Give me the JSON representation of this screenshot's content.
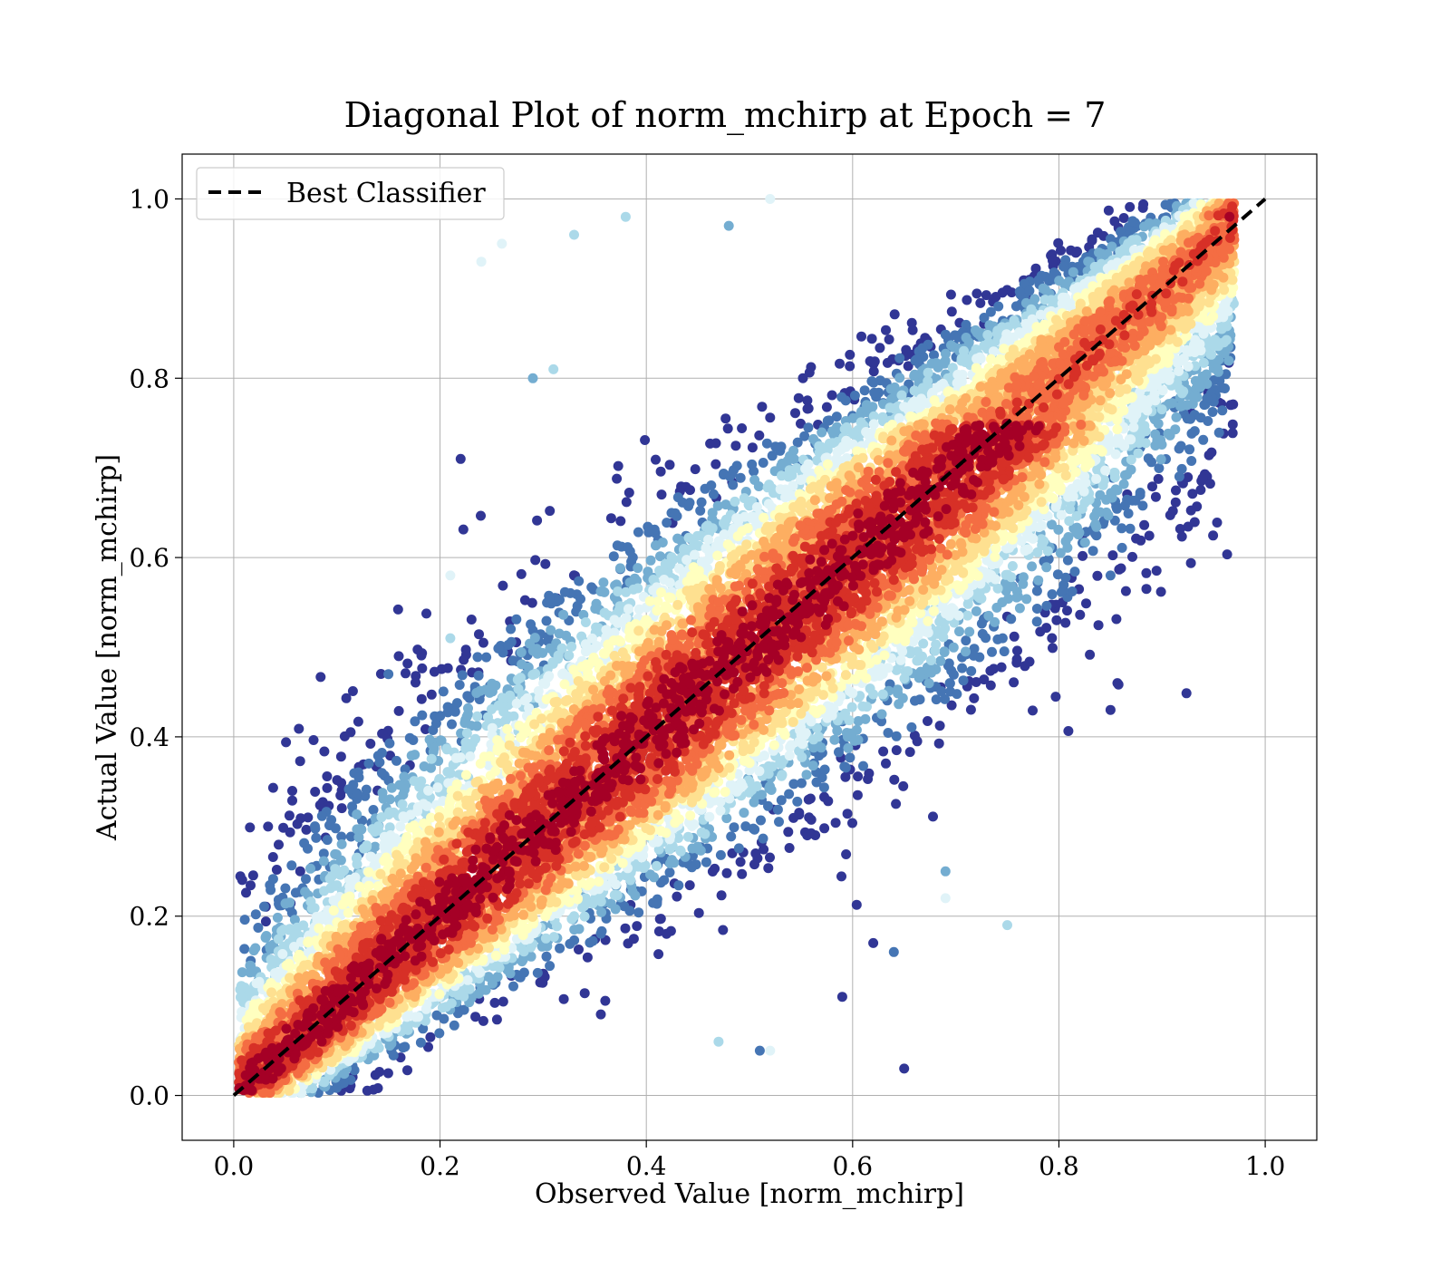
{
  "chart_data": {
    "type": "scatter",
    "title": "Diagonal Plot of norm_mchirp at Epoch = 7",
    "xlabel": "Observed Value [norm_mchirp]",
    "ylabel": "Actual Value [norm_mchirp]",
    "xlim": [
      -0.05,
      1.05
    ],
    "ylim": [
      -0.05,
      1.05
    ],
    "xticks": [
      0.0,
      0.2,
      0.4,
      0.6,
      0.8,
      1.0
    ],
    "yticks": [
      0.0,
      0.2,
      0.4,
      0.6,
      0.8,
      1.0
    ],
    "xtick_labels": [
      "0.0",
      "0.2",
      "0.4",
      "0.6",
      "0.8",
      "1.0"
    ],
    "ytick_labels": [
      "0.0",
      "0.2",
      "0.4",
      "0.6",
      "0.8",
      "1.0"
    ],
    "grid": true,
    "legend": {
      "placement": "upper-left",
      "entries": [
        "Best Classifier"
      ]
    },
    "reference_line": {
      "name": "Best Classifier",
      "style": "dashed",
      "color": "#000000",
      "x": [
        0.0,
        1.0
      ],
      "y": [
        0.0,
        1.0
      ]
    },
    "colormap": [
      "#313695",
      "#4575b4",
      "#74add1",
      "#abd9e9",
      "#e0f3f8",
      "#ffffbf",
      "#fee090",
      "#fdae61",
      "#f46d43",
      "#d73027",
      "#a50026"
    ],
    "points_description_count": 15000,
    "outliers": [
      {
        "x": 0.26,
        "y": 0.95
      },
      {
        "x": 0.24,
        "y": 0.93
      },
      {
        "x": 0.15,
        "y": 0.47
      },
      {
        "x": 0.16,
        "y": 0.49
      },
      {
        "x": 0.85,
        "y": 0.43
      },
      {
        "x": 0.75,
        "y": 0.19
      },
      {
        "x": 0.65,
        "y": 0.03
      },
      {
        "x": 0.59,
        "y": 0.11
      },
      {
        "x": 0.51,
        "y": 0.05
      },
      {
        "x": 0.52,
        "y": 0.05
      },
      {
        "x": 0.47,
        "y": 0.06
      },
      {
        "x": 0.62,
        "y": 0.17
      },
      {
        "x": 0.64,
        "y": 0.16
      },
      {
        "x": 0.69,
        "y": 0.22
      },
      {
        "x": 0.69,
        "y": 0.25
      },
      {
        "x": 0.96,
        "y": 0.84
      },
      {
        "x": 0.85,
        "y": 0.58
      },
      {
        "x": 0.21,
        "y": 0.58
      },
      {
        "x": 0.21,
        "y": 0.51
      },
      {
        "x": 0.22,
        "y": 0.71
      },
      {
        "x": 0.29,
        "y": 0.8
      },
      {
        "x": 0.31,
        "y": 0.81
      },
      {
        "x": 0.38,
        "y": 0.98
      },
      {
        "x": 0.52,
        "y": 1.0
      },
      {
        "x": 0.48,
        "y": 0.97
      },
      {
        "x": 0.33,
        "y": 0.96
      }
    ]
  }
}
